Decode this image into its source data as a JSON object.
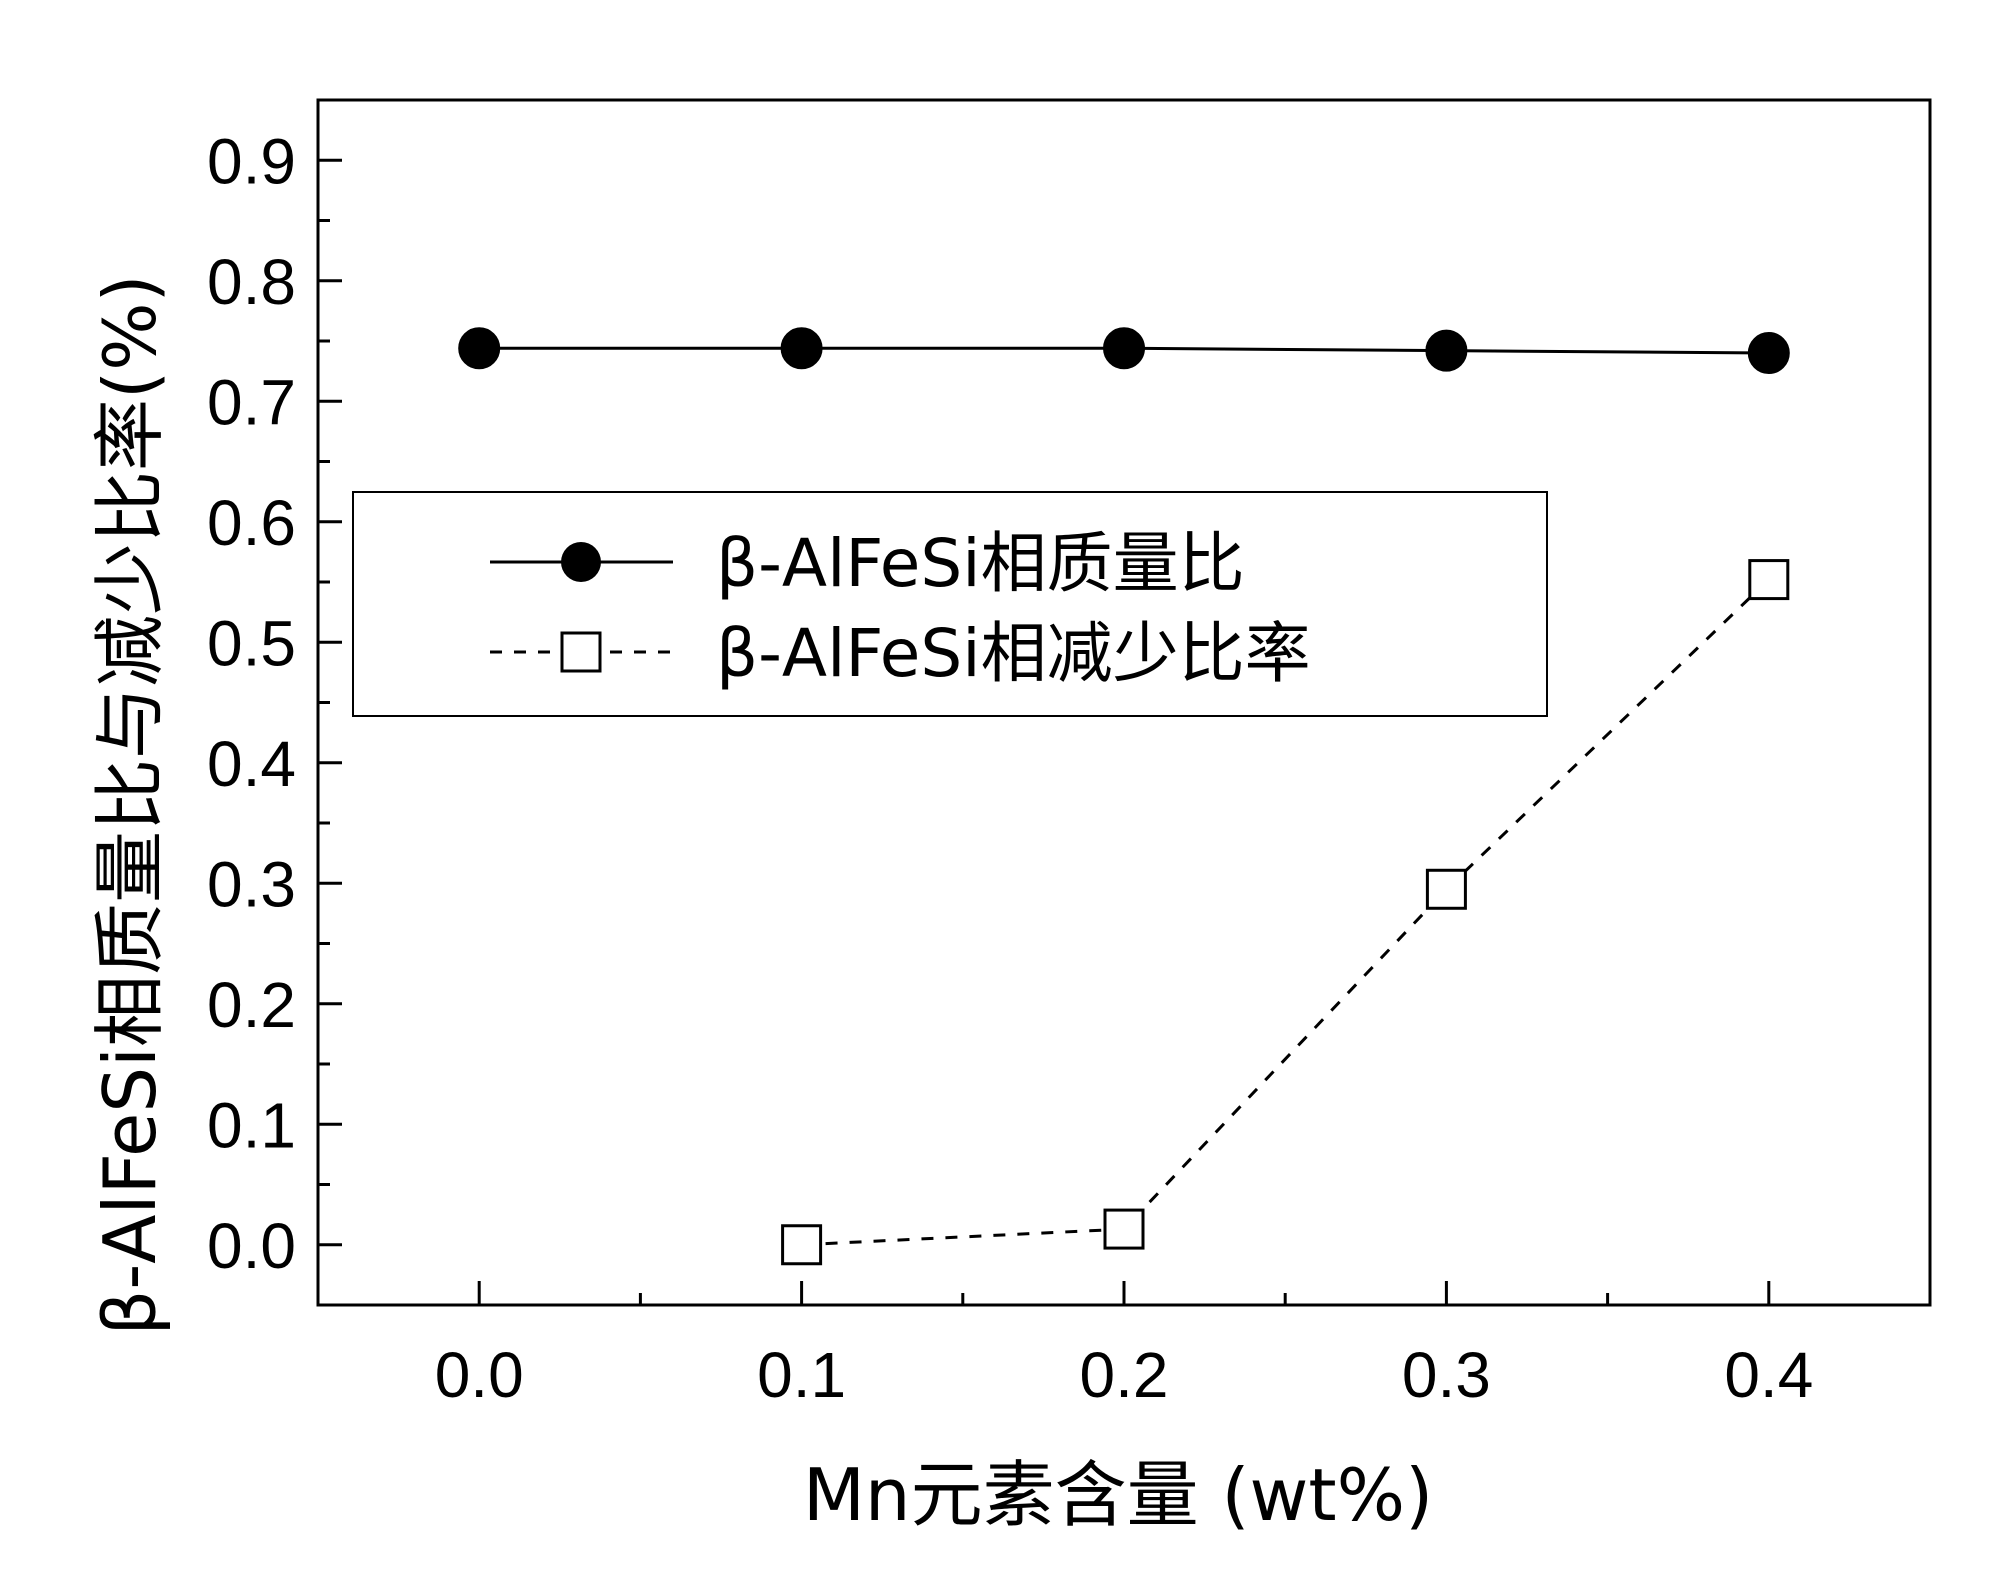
{
  "chart_data": {
    "type": "line",
    "xlabel": "Mn元素含量 (wt%)",
    "ylabel": "β-AlFeSi相质量比与减少比率(%)",
    "xlim": [
      -0.05,
      0.45
    ],
    "ylim": [
      -0.05,
      0.95
    ],
    "x_ticks": [
      "0.0",
      "0.1",
      "0.2",
      "0.3",
      "0.4"
    ],
    "x_tick_values": [
      0.0,
      0.1,
      0.2,
      0.3,
      0.4
    ],
    "y_ticks": [
      "0.0",
      "0.1",
      "0.2",
      "0.3",
      "0.4",
      "0.5",
      "0.6",
      "0.7",
      "0.8",
      "0.9"
    ],
    "y_tick_values": [
      0.0,
      0.1,
      0.2,
      0.3,
      0.4,
      0.5,
      0.6,
      0.7,
      0.8,
      0.9
    ],
    "grid": false,
    "legend_position": "center-left",
    "series": [
      {
        "name": "β-AlFeSi相质量比",
        "marker": "filled-circle",
        "line_style": "solid",
        "x": [
          0.0,
          0.1,
          0.2,
          0.3,
          0.4
        ],
        "y": [
          0.744,
          0.744,
          0.744,
          0.742,
          0.74
        ]
      },
      {
        "name": "β-AlFeSi相减少比率",
        "marker": "open-square",
        "line_style": "dashed",
        "x": [
          0.1,
          0.2,
          0.3,
          0.4
        ],
        "y": [
          0.0,
          0.013,
          0.295,
          0.552
        ]
      }
    ]
  }
}
